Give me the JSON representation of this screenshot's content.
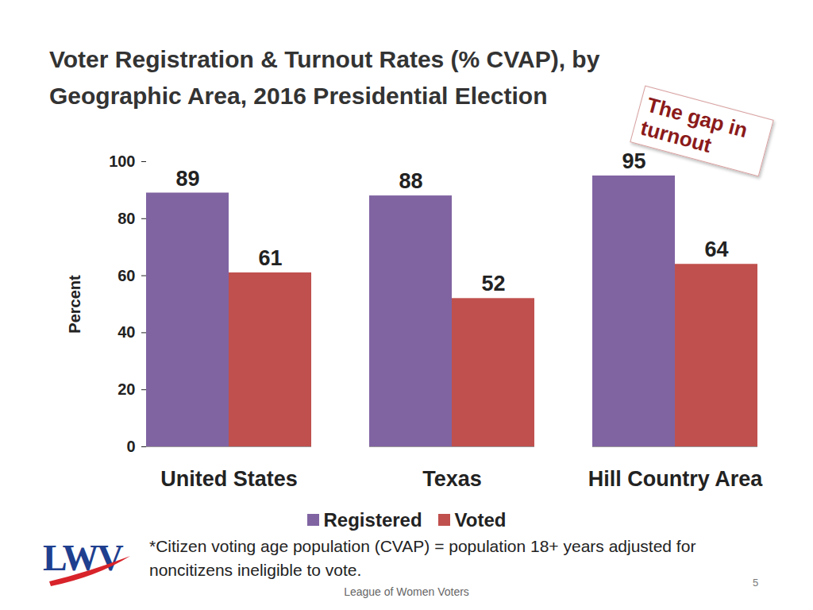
{
  "chart_data": {
    "type": "bar",
    "title": "Voter Registration & Turnout Rates (% CVAP), by Geographic Area, 2016 Presidential Election",
    "categories": [
      "United States",
      "Texas",
      "Hill Country Area"
    ],
    "series": [
      {
        "name": "Registered",
        "color": "#8064a2",
        "values": [
          89,
          88,
          95
        ]
      },
      {
        "name": "Voted",
        "color": "#c0504d",
        "values": [
          61,
          52,
          64
        ]
      }
    ],
    "ylabel": "Percent",
    "ylim": [
      0,
      100
    ],
    "yticks": [
      0,
      20,
      40,
      60,
      80,
      100
    ],
    "grid": false,
    "data_labels": true,
    "legend": "bottom",
    "annotation": "The gap in turnout",
    "footnote": "*Citizen voting age population (CVAP) = population 18+ years adjusted for noncitizens ineligible to vote.",
    "source": "League of Women Voters",
    "page_number": "5",
    "logo": "LWV"
  }
}
